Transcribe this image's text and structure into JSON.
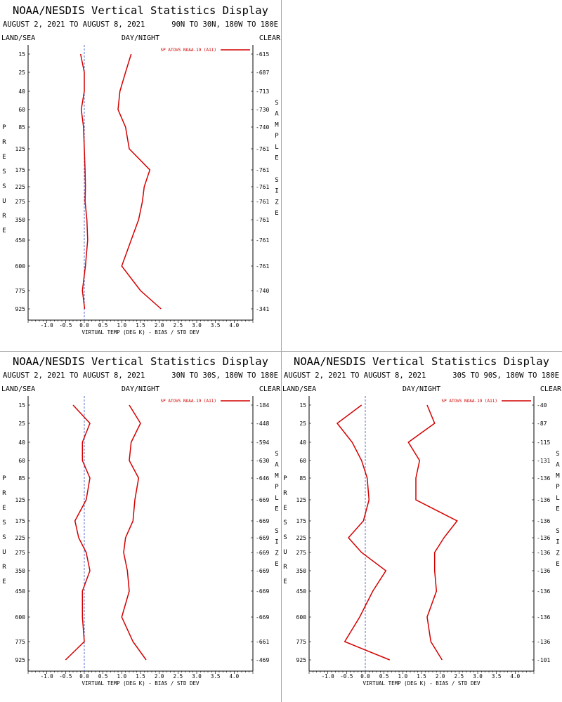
{
  "colors": {
    "series": "#d40000",
    "zero_line": "#3050c0",
    "divider": "#a8a8a8"
  },
  "chart_data": [
    {
      "type": "line",
      "title": "NOAA/NESDIS Vertical Statistics Display",
      "date_range": "AUGUST 2, 2021 TO AUGUST 8, 2021",
      "region": "90N TO 30N, 180W TO 180E",
      "left_header": "LAND/SEA",
      "center_header": "DAY/NIGHT",
      "right_header": "CLEAR",
      "ylabel": "PRESSURE",
      "y2label": "SAMPLE SIZE",
      "xlabel": "VIRTUAL TEMP (DEG K) - BIAS / STD DEV",
      "legend": "SP ATOVS NOAA-19 (A11)",
      "legend_placement": "top-right",
      "xlim": [
        -1.5,
        4.5
      ],
      "xticks": [
        "-1.0",
        "-0.5",
        "0.0",
        "0.5",
        "1.0",
        "1.5",
        "2.0",
        "2.5",
        "3.0",
        "3.5",
        "4.0"
      ],
      "pressure_levels": [
        "15",
        "25",
        "40",
        "60",
        "85",
        "125",
        "175",
        "225",
        "275",
        "350",
        "450",
        "600",
        "775",
        "925"
      ],
      "sample_size": [
        "615",
        "687",
        "713",
        "730",
        "740",
        "761",
        "761",
        "761",
        "761",
        "761",
        "761",
        "761",
        "740",
        "341"
      ],
      "series": [
        {
          "kind": "bias",
          "values": [
            -0.1,
            0.0,
            0.0,
            -0.08,
            -0.02,
            0.0,
            0.02,
            0.03,
            0.02,
            0.07,
            0.09,
            0.03,
            -0.05,
            0.01
          ]
        },
        {
          "kind": "std",
          "values": [
            1.25,
            1.1,
            0.95,
            0.9,
            1.1,
            1.2,
            1.75,
            1.6,
            1.55,
            1.45,
            1.25,
            1.0,
            1.5,
            2.05
          ]
        }
      ]
    },
    {
      "type": "line",
      "title": "NOAA/NESDIS Vertical Statistics Display",
      "date_range": "AUGUST 2, 2021 TO AUGUST 8, 2021",
      "region": "30N TO 30S, 180W TO 180E",
      "left_header": "LAND/SEA",
      "center_header": "DAY/NIGHT",
      "right_header": "CLEAR",
      "ylabel": "PRESSURE",
      "y2label": "SAMPLE SIZE",
      "xlabel": "VIRTUAL TEMP (DEG K) - BIAS / STD DEV",
      "legend": "SP ATOVS NOAA-19 (A11)",
      "legend_placement": "top-right",
      "xlim": [
        -1.5,
        4.5
      ],
      "xticks": [
        "-1.0",
        "-0.5",
        "0.0",
        "0.5",
        "1.0",
        "1.5",
        "2.0",
        "2.5",
        "3.0",
        "3.5",
        "4.0"
      ],
      "pressure_levels": [
        "15",
        "25",
        "40",
        "60",
        "85",
        "125",
        "175",
        "225",
        "275",
        "350",
        "450",
        "600",
        "775",
        "925"
      ],
      "sample_size": [
        "184",
        "448",
        "594",
        "630",
        "646",
        "669",
        "669",
        "669",
        "669",
        "669",
        "669",
        "669",
        "661",
        "469"
      ],
      "series": [
        {
          "kind": "bias",
          "values": [
            -0.3,
            0.15,
            -0.05,
            -0.05,
            0.15,
            0.05,
            -0.25,
            -0.15,
            0.05,
            0.15,
            -0.05,
            -0.05,
            0.0,
            -0.5
          ]
        },
        {
          "kind": "std",
          "values": [
            1.2,
            1.5,
            1.25,
            1.2,
            1.45,
            1.35,
            1.3,
            1.1,
            1.05,
            1.15,
            1.2,
            1.0,
            1.3,
            1.65
          ]
        }
      ]
    },
    {
      "type": "line",
      "title": "NOAA/NESDIS Vertical Statistics Display",
      "date_range": "AUGUST 2, 2021 TO AUGUST 8, 2021",
      "region": "30S TO 90S, 180W TO 180E",
      "left_header": "LAND/SEA",
      "center_header": "DAY/NIGHT",
      "right_header": "CLEAR",
      "ylabel": "PRESSURE",
      "y2label": "SAMPLE SIZE",
      "xlabel": "VIRTUAL TEMP (DEG K) - BIAS / STD DEV",
      "legend": "SP ATOVS NOAA-19 (A11)",
      "legend_placement": "top-right",
      "xlim": [
        -1.5,
        4.5
      ],
      "xticks": [
        "-1.0",
        "-0.5",
        "0.0",
        "0.5",
        "1.0",
        "1.5",
        "2.0",
        "2.5",
        "3.0",
        "3.5",
        "4.0"
      ],
      "pressure_levels": [
        "15",
        "25",
        "40",
        "60",
        "85",
        "125",
        "175",
        "225",
        "275",
        "350",
        "450",
        "600",
        "775",
        "925"
      ],
      "sample_size": [
        "40",
        "87",
        "115",
        "131",
        "136",
        "136",
        "136",
        "136",
        "136",
        "136",
        "136",
        "136",
        "136",
        "101"
      ],
      "series": [
        {
          "kind": "bias",
          "values": [
            -0.1,
            -0.75,
            -0.35,
            -0.1,
            0.05,
            0.1,
            -0.05,
            -0.45,
            -0.1,
            0.55,
            0.2,
            -0.15,
            -0.55,
            0.65
          ]
        },
        {
          "kind": "std",
          "values": [
            1.65,
            1.85,
            1.15,
            1.45,
            1.35,
            1.35,
            2.45,
            2.1,
            1.85,
            1.85,
            1.9,
            1.65,
            1.75,
            2.05
          ]
        }
      ]
    }
  ]
}
